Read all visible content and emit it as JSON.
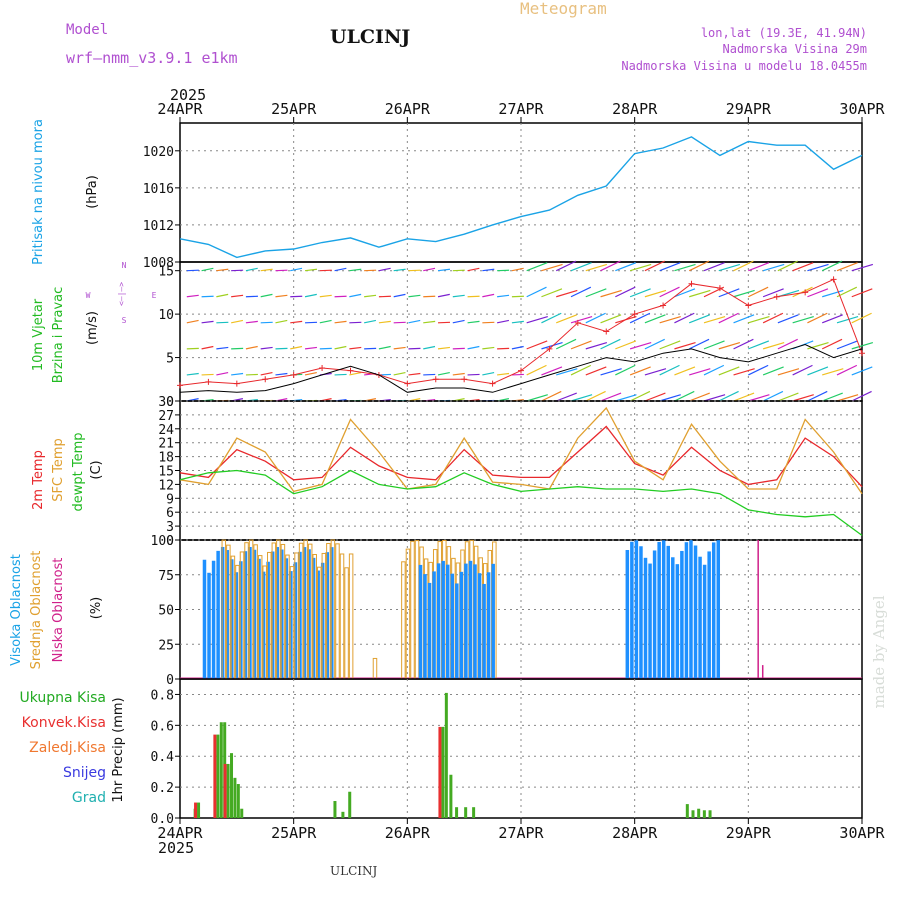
{
  "header": {
    "model_label": "Model",
    "model_name": "wrf—nmm_v3.9.1 e1km",
    "station": "ULCINJ",
    "product": "Meteogram",
    "lonlat": "lon,lat (19.3E, 41.94N)",
    "elevation": "Nadmorska Visina 29m",
    "model_elevation": "Nadmorska Visina u modelu 18.0455m"
  },
  "axis": {
    "year": "2025",
    "dates": [
      "24APR",
      "25APR",
      "26APR",
      "27APR",
      "28APR",
      "29APR",
      "30APR"
    ]
  },
  "footer": {
    "station": "ULCINJ"
  },
  "watermark": "made by Angel",
  "colors": {
    "pressure": "#1aa3e6",
    "wind_speed": "#000000",
    "gust": "#e8282c",
    "t2m": "#e8282c",
    "tsfc": "#e0a030",
    "dewpt": "#22cc22",
    "cloud_high": "#1e90ff",
    "cloud_mid": "#e0a030",
    "cloud_low": "#d0208a",
    "precip_total": "#44aa22",
    "precip_conv": "#e83030"
  },
  "panels": {
    "pressure": {
      "label_main": "Pritisak na nivou mora",
      "unit": "(hPa)"
    },
    "wind": {
      "label_main": "10m Vjetar",
      "label_sub": "Brzina i Pravac",
      "unit": "(m/s)",
      "compass": [
        "N",
        "W",
        "<—|—>",
        "E",
        "S"
      ]
    },
    "temp": {
      "label_a": "2m Temp",
      "label_b": "SFC Temp",
      "label_c": "dewpt Temp",
      "unit": "(C)"
    },
    "cloud": {
      "label_a": "Visoka Oblacnost",
      "label_b": "Srednja Oblacnost",
      "label_c": "Niska Oblacnost",
      "unit": "(%)"
    },
    "precip": {
      "unit": "1hr Precip (mm)",
      "legend": [
        "Ukupna Kisa",
        "Konvek.Kisa",
        "Zaledj.Kisa",
        "Snijeg",
        "Grad"
      ],
      "legend_colors": [
        "#22aa22",
        "#e83030",
        "#f07830",
        "#3a3ae0",
        "#20b0b0"
      ]
    }
  },
  "chart_data": [
    {
      "type": "line",
      "name": "pressure",
      "ylim": [
        1008,
        1023
      ],
      "yticks": [
        1008,
        1012,
        1016,
        1020
      ],
      "x": [
        0,
        0.25,
        0.5,
        0.75,
        1,
        1.25,
        1.5,
        1.75,
        2,
        2.25,
        2.5,
        2.75,
        3,
        3.25,
        3.5,
        3.75,
        4,
        4.25,
        4.5,
        4.75,
        5,
        5.25,
        5.5,
        5.75,
        6
      ],
      "values": [
        1010.5,
        1009.9,
        1008.5,
        1009.2,
        1009.4,
        1010.1,
        1010.6,
        1009.6,
        1010.5,
        1010.2,
        1011.0,
        1012.0,
        1012.9,
        1013.6,
        1015.2,
        1016.2,
        1019.7,
        1020.3,
        1021.5,
        1019.5,
        1021.0,
        1020.6,
        1020.6,
        1018.0,
        1019.5
      ]
    },
    {
      "type": "line",
      "name": "wind",
      "ylim": [
        0,
        16
      ],
      "yticks": [
        0,
        5,
        10,
        15
      ],
      "x": [
        0,
        0.25,
        0.5,
        0.75,
        1,
        1.25,
        1.5,
        1.75,
        2,
        2.25,
        2.5,
        2.75,
        3,
        3.25,
        3.5,
        3.75,
        4,
        4.25,
        4.5,
        4.75,
        5,
        5.25,
        5.5,
        5.75,
        6
      ],
      "speed": [
        1.0,
        1.2,
        1.0,
        1.2,
        2.0,
        3.0,
        4.0,
        3.0,
        1.0,
        1.5,
        1.5,
        1.0,
        2.0,
        3.0,
        4.0,
        5.0,
        4.5,
        5.5,
        6.0,
        5.0,
        4.5,
        5.5,
        6.5,
        5.0,
        6.0
      ],
      "gust": [
        1.8,
        2.2,
        2.0,
        2.5,
        3.0,
        3.8,
        3.5,
        3.0,
        2.0,
        2.5,
        2.5,
        2.0,
        3.5,
        6.0,
        9.0,
        8.0,
        10.0,
        11.0,
        13.5,
        13.0,
        11.0,
        12.0,
        12.5,
        14.0,
        5.5
      ]
    },
    {
      "type": "line",
      "name": "temperature",
      "ylim": [
        0,
        30
      ],
      "yticks": [
        0,
        3,
        6,
        9,
        12,
        15,
        18,
        21,
        24,
        27,
        30
      ],
      "x": [
        0,
        0.25,
        0.5,
        0.75,
        1,
        1.25,
        1.5,
        1.75,
        2,
        2.25,
        2.5,
        2.75,
        3,
        3.25,
        3.5,
        3.75,
        4,
        4.25,
        4.5,
        4.75,
        5,
        5.25,
        5.5,
        5.75,
        6
      ],
      "series": [
        {
          "name": "2m Temp",
          "values": [
            14.5,
            13.5,
            19.5,
            17.0,
            13.0,
            13.5,
            20.0,
            16.0,
            13.5,
            13.0,
            19.5,
            14.0,
            13.5,
            13.5,
            19.0,
            24.5,
            16.5,
            14.0,
            20.0,
            15.0,
            12.0,
            13.0,
            22.0,
            18.0,
            11.5
          ]
        },
        {
          "name": "SFC Temp",
          "values": [
            13.0,
            12.0,
            22.0,
            19.0,
            10.5,
            12.0,
            26.0,
            19.0,
            11.0,
            12.0,
            22.0,
            12.5,
            12.0,
            11.0,
            22.0,
            28.5,
            17.0,
            13.0,
            25.0,
            17.0,
            11.0,
            11.0,
            26.0,
            19.0,
            10.0
          ]
        },
        {
          "name": "dewpt Temp",
          "values": [
            13.0,
            14.5,
            15.0,
            14.0,
            10.0,
            11.5,
            15.0,
            12.0,
            11.0,
            11.5,
            14.5,
            12.0,
            10.5,
            11.0,
            11.5,
            11.0,
            11.0,
            10.5,
            11.0,
            10.0,
            6.5,
            5.5,
            5.0,
            5.5,
            1.0
          ]
        }
      ]
    },
    {
      "type": "bar",
      "name": "cloud_cover",
      "ylim": [
        0,
        100
      ],
      "yticks": [
        0,
        25,
        50,
        75,
        100
      ],
      "spans": [
        {
          "series": "Visoka Oblacnost",
          "from": 0.2,
          "to": 1.35,
          "value": 95
        },
        {
          "series": "Srednja Oblacnost",
          "from": 0.37,
          "to": 1.5,
          "value": 100
        },
        {
          "series": "Srednja Oblacnost",
          "from": 1.7,
          "to": 1.72,
          "value": 18
        },
        {
          "series": "Srednja Oblacnost",
          "from": 1.95,
          "to": 2.75,
          "value": 100
        },
        {
          "series": "Visoka Oblacnost",
          "from": 2.1,
          "to": 2.75,
          "value": 85
        },
        {
          "series": "Visoka Oblacnost",
          "from": 3.92,
          "to": 4.72,
          "value": 100
        },
        {
          "series": "Niska Oblacnost",
          "from": 5.08,
          "to": 5.08,
          "value": 100
        },
        {
          "series": "Niska Oblacnost",
          "from": 5.12,
          "to": 5.12,
          "value": 10
        }
      ]
    },
    {
      "type": "bar",
      "name": "precipitation",
      "ylim": [
        0,
        0.9
      ],
      "yticks": [
        0,
        0.2,
        0.4,
        0.6,
        0.8
      ],
      "x": [
        0.12,
        0.15,
        0.32,
        0.35,
        0.38,
        0.41,
        0.44,
        0.47,
        0.5,
        0.53,
        1.35,
        1.42,
        1.48,
        2.3,
        2.33,
        2.37,
        2.42,
        2.5,
        2.57,
        4.45,
        4.5,
        4.55,
        4.6,
        4.65
      ],
      "values": [
        0.06,
        0.1,
        0.54,
        0.62,
        0.62,
        0.35,
        0.42,
        0.26,
        0.22,
        0.06,
        0.11,
        0.04,
        0.17,
        0.59,
        0.81,
        0.28,
        0.07,
        0.07,
        0.07,
        0.09,
        0.05,
        0.06,
        0.05,
        0.05
      ],
      "convective": [
        0.0,
        0.1,
        0.54,
        0.0,
        0.0,
        0.35,
        0.0,
        0.0,
        0.0,
        0.0,
        0.0,
        0.0,
        0.0,
        0.59,
        0.0,
        0.0,
        0.0,
        0.0,
        0.0,
        0.0,
        0.0,
        0.0,
        0.0,
        0.0
      ]
    }
  ]
}
